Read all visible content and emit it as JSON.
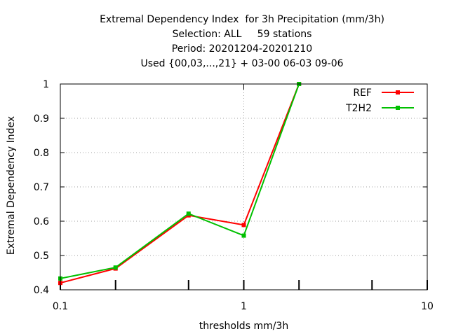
{
  "chart_data": {
    "type": "line",
    "title_lines": [
      "Extremal Dependency Index  for 3h Precipitation (mm/3h)",
      "Selection: ALL     59 stations",
      "Period: 20201204-20201210",
      "Used {00,03,...,21} + 03-00 06-03 09-06"
    ],
    "xlabel": "thresholds mm/3h",
    "ylabel": "Extremal Dependency Index",
    "x_scale": "log",
    "xlim": [
      0.1,
      10
    ],
    "ylim": [
      0.4,
      1.0
    ],
    "x_ticks": [
      0.1,
      1,
      10
    ],
    "x_tick_labels": [
      "0.1",
      "1",
      "10"
    ],
    "x_minor_ticks": [
      0.2,
      0.5,
      2,
      5
    ],
    "y_ticks": [
      0.4,
      0.5,
      0.6,
      0.7,
      0.8,
      0.9,
      1.0
    ],
    "y_tick_labels": [
      "0.4",
      "0.5",
      "0.6",
      "0.7",
      "0.8",
      "0.9",
      "1"
    ],
    "grid": true,
    "legend_position": "top-right",
    "x": [
      0.1,
      0.2,
      0.5,
      1,
      2
    ],
    "series": [
      {
        "name": "REF",
        "color": "#ff0000",
        "values": [
          0.42,
          0.462,
          0.617,
          0.589,
          1.0
        ]
      },
      {
        "name": "T2H2",
        "color": "#00c000",
        "values": [
          0.433,
          0.465,
          0.622,
          0.558,
          1.0
        ]
      }
    ]
  }
}
